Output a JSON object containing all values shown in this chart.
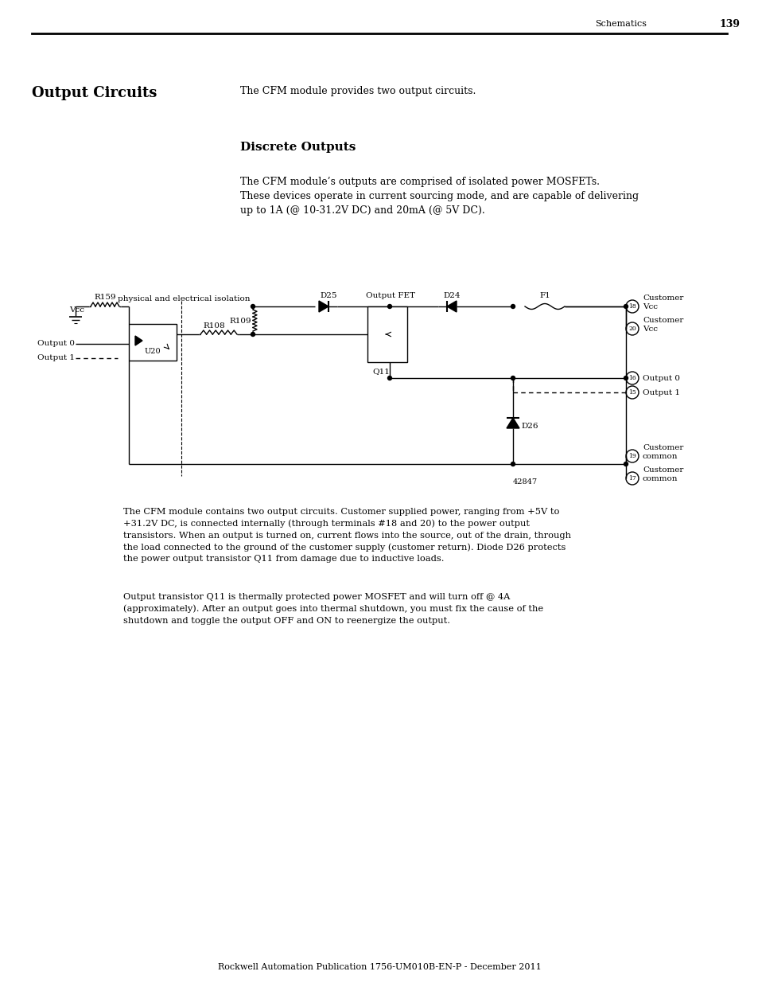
{
  "page_header_right": "Schematics",
  "page_number": "139",
  "section_title": "Output Circuits",
  "section_intro": "The CFM module provides two output circuits.",
  "subsection_title": "Discrete Outputs",
  "subsection_body": "The CFM module’s outputs are comprised of isolated power MOSFETs.\nThese devices operate in current sourcing mode, and are capable of delivering\nup to 1A (@ 10-31.2V DC) and 20mA (@ 5V DC).",
  "isolation_label": "physical and electrical isolation",
  "vcc_label": "Vcc",
  "r159_label": "R159",
  "u20_label": "U20",
  "r108_label": "R108",
  "r109_label": "R109",
  "d25_label": "D25",
  "output_fet_label": "Output FET",
  "q11_label": "Q11",
  "d24_label": "D24",
  "d26_label": "D26",
  "f1_label": "F1",
  "output0_left": "Output 0",
  "output1_left": "Output 1",
  "customer_vcc_1": "Customer\nVcc",
  "customer_vcc_2": "Customer\nVcc",
  "output0_right": "Output 0",
  "output1_right": "Output 1",
  "customer_common_1": "Customer\ncommon",
  "customer_common_2": "Customer\ncommon",
  "figure_number": "42847",
  "body_text1": "The CFM module contains two output circuits. Customer supplied power, ranging from +5V to\n+31.2V DC, is connected internally (through terminals #18 and 20) to the power output\ntransistors. When an output is turned on, current flows into the source, out of the drain, through\nthe load connected to the ground of the customer supply (customer return). Diode D26 protects\nthe power output transistor Q11 from damage due to inductive loads.",
  "body_text2": "Output transistor Q11 is thermally protected power MOSFET and will turn off @ 4A\n(approximately). After an output goes into thermal shutdown, you must fix the cause of the\nshutdown and toggle the output OFF and ON to reenergize the output.",
  "footer_text": "Rockwell Automation Publication 1756-UM010B-EN-P - December 2011",
  "bg_color": "#ffffff",
  "text_color": "#000000"
}
